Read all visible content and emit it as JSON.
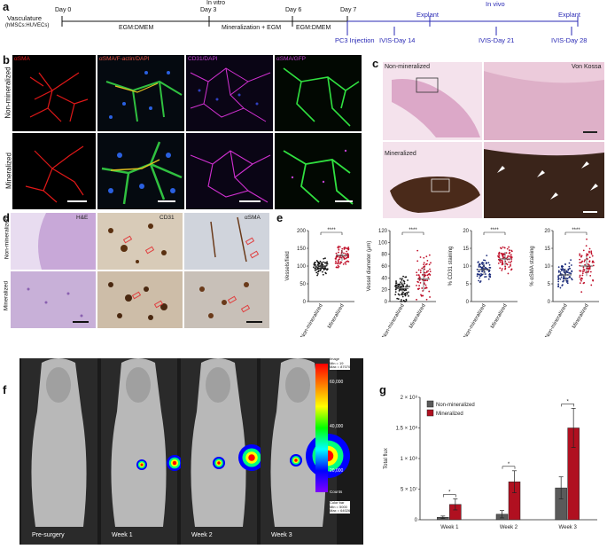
{
  "panel_labels": {
    "a": "a",
    "b": "b",
    "c": "c",
    "d": "d",
    "e": "e",
    "f": "f",
    "g": "g"
  },
  "timeline": {
    "vasculature_label": "Vasculature",
    "cells_label": "(hMSCs:HUVECs)",
    "days": [
      "Day 0",
      "Day 3",
      "Day 6",
      "Day 7"
    ],
    "phase_labels": [
      "EGM:DMEM",
      "Mineralization + EGM",
      "EGM:DMEM"
    ],
    "in_vitro": "In vitro",
    "in_vivo": "In vivo",
    "explant_1": "Explant",
    "explant_2": "Explant",
    "vivo_events": [
      "PC3 Injection",
      "IVIS-Day 14",
      "IVIS-Day 21",
      "IVIS-Day 28"
    ]
  },
  "panel_b": {
    "row_labels": [
      "Non-mineralized",
      "Mineralized"
    ],
    "col_labels": [
      "αSMA",
      "αSMA/F-actin/DAPI",
      "CD31/DAPI",
      "αSMA/GFP"
    ]
  },
  "panel_c": {
    "top_label": "Non-mineralized",
    "bottom_label": "Mineralized",
    "stain_label": "Von Kossa"
  },
  "panel_d": {
    "row_labels": [
      "Non-mineralized",
      "Mineralized"
    ],
    "col_labels": [
      "H&E",
      "CD31",
      "αSMA"
    ]
  },
  "panel_e": {
    "sig": "****",
    "groups": [
      "Non-mineralized",
      "Mineralized"
    ]
  },
  "panel_f": {
    "week_labels": [
      "Pre-surgery",
      "Week 1",
      "Week 2",
      "Week 3"
    ],
    "colorbar_ticks": [
      "60,000",
      "40,000",
      "20,000"
    ],
    "colorbar_header": "Image\nMin = 19\nMax = 87070",
    "colorbar_footer": "Color bar\nMin = 5000\nMax = 64026",
    "colorbar_unit": "Counts"
  },
  "chart_data": [
    {
      "type": "scatter",
      "ylabel": "Vessels/field",
      "ylim": [
        0,
        200
      ],
      "yticks": [
        0,
        50,
        100,
        150,
        200
      ],
      "categories": [
        "Non-mineralized",
        "Mineralized"
      ],
      "colors": [
        "#111111",
        "#c0102a"
      ],
      "means": [
        100,
        130
      ],
      "sd": [
        10,
        15
      ],
      "significance": "****"
    },
    {
      "type": "scatter",
      "ylabel": "Vessel diameter (μm)",
      "ylim": [
        0,
        120
      ],
      "yticks": [
        0,
        20,
        40,
        60,
        80,
        100,
        120
      ],
      "categories": [
        "Non-mineralized",
        "Mineralized"
      ],
      "colors": [
        "#111111",
        "#c0102a"
      ],
      "means": [
        22,
        38
      ],
      "sd": [
        12,
        20
      ],
      "significance": "****"
    },
    {
      "type": "scatter",
      "ylabel": "% CD31 staining",
      "ylim": [
        0,
        20
      ],
      "yticks": [
        0,
        5,
        10,
        15,
        20
      ],
      "categories": [
        "Non-mineralized",
        "Mineralized"
      ],
      "colors": [
        "#1a2a7a",
        "#c0102a"
      ],
      "means": [
        9,
        12
      ],
      "sd": [
        1.5,
        2
      ],
      "significance": "****"
    },
    {
      "type": "scatter",
      "ylabel": "% αSMA staining",
      "ylim": [
        0,
        20
      ],
      "yticks": [
        0,
        5,
        10,
        15,
        20
      ],
      "categories": [
        "Non-mineralized",
        "Mineralized"
      ],
      "colors": [
        "#1a2a7a",
        "#c0102a"
      ],
      "means": [
        7.5,
        10
      ],
      "sd": [
        1.8,
        2.8
      ],
      "significance": "****"
    },
    {
      "type": "bar",
      "ylabel": "Total flux",
      "categories": [
        "Week 1",
        "Week 2",
        "Week 3"
      ],
      "series": [
        {
          "name": "Non-mineralized",
          "values": [
            4000000,
            9000000,
            52000000
          ],
          "errors": [
            2000000,
            6000000,
            18000000
          ],
          "color": "#5a5a5a"
        },
        {
          "name": "Mineralized",
          "values": [
            25000000,
            62000000,
            150000000
          ],
          "errors": [
            9000000,
            18000000,
            32000000
          ],
          "color": "#b01020"
        }
      ],
      "ylim": [
        0,
        200000000
      ],
      "ytick_labels": [
        "0",
        "5 × 10⁷",
        "1 × 10⁸",
        "1.5 × 10⁸",
        "2 × 10⁸"
      ],
      "significance": [
        "*",
        "*",
        "*"
      ],
      "legend": "top-left"
    }
  ]
}
